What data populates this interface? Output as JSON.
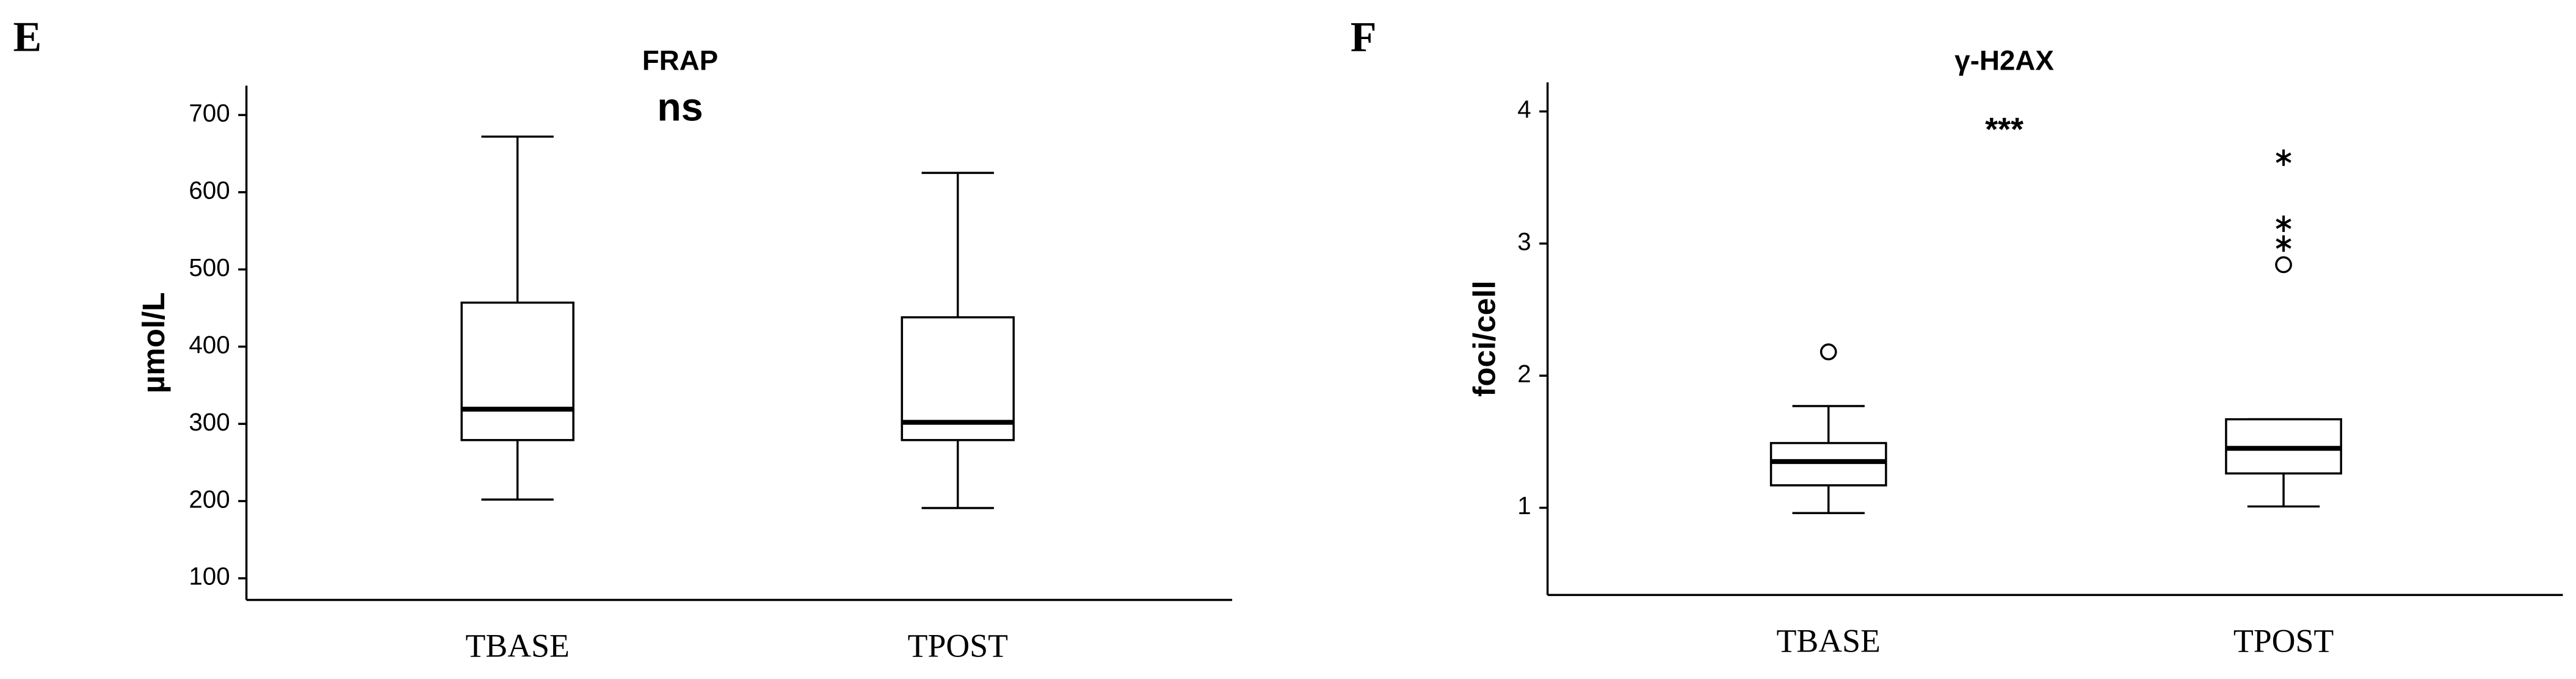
{
  "chart_data": [
    {
      "type": "box",
      "panel_label": "E",
      "title": "FRAP",
      "annotation": "ns",
      "y_label": "µmol/L",
      "categories": [
        "TBASE",
        "TPOST"
      ],
      "boxes": [
        {
          "min": 202,
          "q1": 279,
          "median": 319,
          "q3": 457,
          "max": 672,
          "outliers": [],
          "extremes": []
        },
        {
          "min": 191,
          "q1": 279,
          "median": 302,
          "q3": 438,
          "max": 625,
          "outliers": [],
          "extremes": []
        }
      ],
      "ylim": [
        72,
        738
      ],
      "yticks": [
        100,
        200,
        300,
        400,
        500,
        600,
        700
      ]
    },
    {
      "type": "box",
      "panel_label": "F",
      "title": "γ-H2AX",
      "annotation": "***",
      "y_label": "foci/cell",
      "categories": [
        "TBASE",
        "TPOST"
      ],
      "boxes": [
        {
          "min": 0.96,
          "q1": 1.17,
          "median": 1.35,
          "q3": 1.49,
          "max": 1.77,
          "outliers": [
            2.18
          ],
          "extremes": []
        },
        {
          "min": 1.01,
          "q1": 1.26,
          "median": 1.45,
          "q3": 1.67,
          "max": 1.67,
          "outliers": [
            2.84
          ],
          "extremes": [
            3.65,
            3.15,
            3.0
          ]
        }
      ],
      "ylim": [
        0.34,
        4.22
      ],
      "yticks": [
        1,
        2,
        3,
        4
      ]
    }
  ]
}
